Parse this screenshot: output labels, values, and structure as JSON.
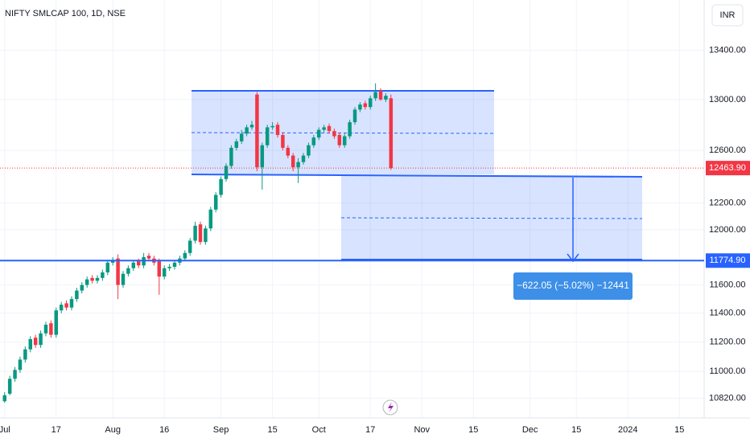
{
  "chart_data": {
    "type": "candlestick",
    "title": "NIFTY SMLCAP 100, 1D, NSE",
    "currency": "INR",
    "log_scale": true,
    "grid": true,
    "up_color": "#089981",
    "down_color": "#f23645",
    "ylim": [
      10690,
      13820
    ],
    "yticks": [
      {
        "value": 10820,
        "label": "10820.00"
      },
      {
        "value": 11000,
        "label": "11000.00"
      },
      {
        "value": 11200,
        "label": "11200.00"
      },
      {
        "value": 11400,
        "label": "11400.00"
      },
      {
        "value": 11600,
        "label": "11600.00"
      },
      {
        "value": 12000,
        "label": "12000.00"
      },
      {
        "value": 12200,
        "label": "12200.00"
      },
      {
        "value": 12600,
        "label": "12600.00"
      },
      {
        "value": 13000,
        "label": "13000.00"
      },
      {
        "value": 13400,
        "label": "13400.00"
      }
    ],
    "xlim": [
      -0.9,
      135.8
    ],
    "xticks": [
      {
        "value": 0,
        "label": "Jul"
      },
      {
        "value": 10,
        "label": "17"
      },
      {
        "value": 21,
        "label": "Aug"
      },
      {
        "value": 31,
        "label": "16"
      },
      {
        "value": 42,
        "label": "Sep"
      },
      {
        "value": 52,
        "label": "15"
      },
      {
        "value": 61,
        "label": "Oct"
      },
      {
        "value": 71,
        "label": "17"
      },
      {
        "value": 81,
        "label": "Nov"
      },
      {
        "value": 91,
        "label": "15"
      },
      {
        "value": 102,
        "label": "Dec"
      },
      {
        "value": 111,
        "label": "15"
      },
      {
        "value": 121,
        "label": "2024"
      },
      {
        "value": 131,
        "label": "15"
      }
    ],
    "open": [
      10800,
      10850,
      10950,
      11010,
      11080,
      11150,
      11230,
      11180,
      11260,
      11330,
      11250,
      11420,
      11470,
      11440,
      11500,
      11560,
      11600,
      11650,
      11630,
      11650,
      11690,
      11760,
      11790,
      11600,
      11680,
      11720,
      11770,
      11740,
      11810,
      11790,
      11770,
      11660,
      11720,
      11730,
      11760,
      11790,
      11830,
      11920,
      12040,
      11910,
      12010,
      12150,
      12260,
      12380,
      12480,
      12620,
      12670,
      12730,
      12780,
      13040,
      12470,
      12640,
      12780,
      12800,
      12720,
      12620,
      12560,
      12470,
      12510,
      12560,
      12640,
      12700,
      12760,
      12790,
      12750,
      12720,
      12640,
      12710,
      12820,
      12920,
      12970,
      12940,
      13010,
      13070,
      13000,
      13010
    ],
    "high": [
      10860,
      10970,
      11030,
      11100,
      11170,
      11240,
      11250,
      11280,
      11340,
      11350,
      11440,
      11480,
      11490,
      11520,
      11580,
      11620,
      11660,
      11670,
      11670,
      11710,
      11780,
      11800,
      11820,
      11700,
      11740,
      11780,
      11790,
      11830,
      11830,
      11810,
      11790,
      11740,
      11750,
      11780,
      11810,
      11850,
      11940,
      12060,
      12060,
      12030,
      12170,
      12280,
      12400,
      12500,
      12640,
      12690,
      12760,
      12800,
      12830,
      13060,
      12660,
      12800,
      12820,
      12820,
      12740,
      12640,
      12580,
      12540,
      12580,
      12660,
      12720,
      12780,
      12800,
      12810,
      12770,
      12740,
      12730,
      12840,
      12940,
      12980,
      12990,
      13030,
      13130,
      13090,
      13050,
      13040
    ],
    "low": [
      10790,
      10840,
      10930,
      10990,
      11060,
      11130,
      11160,
      11160,
      11240,
      11230,
      11230,
      11400,
      11420,
      11420,
      11480,
      11540,
      11580,
      11610,
      11610,
      11630,
      11670,
      11740,
      11500,
      11580,
      11660,
      11700,
      11720,
      11720,
      11770,
      11740,
      11530,
      11640,
      11700,
      11710,
      11740,
      11770,
      11810,
      11900,
      11890,
      11890,
      11990,
      12130,
      12240,
      12360,
      12460,
      12600,
      12650,
      12710,
      12760,
      12440,
      12300,
      12620,
      12760,
      12700,
      12600,
      12540,
      12440,
      12350,
      12490,
      12540,
      12620,
      12680,
      12740,
      12730,
      12690,
      12620,
      12620,
      12690,
      12800,
      12900,
      12920,
      12920,
      12990,
      12990,
      12980,
      12450
    ],
    "close": [
      10840,
      10950,
      11010,
      11080,
      11150,
      11220,
      11180,
      11260,
      11320,
      11250,
      11420,
      11460,
      11440,
      11500,
      11560,
      11600,
      11640,
      11630,
      11650,
      11690,
      11760,
      11780,
      11600,
      11680,
      11720,
      11760,
      11740,
      11800,
      11790,
      11760,
      11660,
      11720,
      11730,
      11760,
      11790,
      11830,
      11920,
      12030,
      11910,
      12010,
      12150,
      12260,
      12380,
      12480,
      12620,
      12670,
      12730,
      12780,
      12800,
      12470,
      12640,
      12780,
      12790,
      12720,
      12620,
      12560,
      12470,
      12510,
      12560,
      12640,
      12700,
      12760,
      12780,
      12750,
      12710,
      12640,
      12710,
      12820,
      12920,
      12960,
      12940,
      13010,
      13060,
      13000,
      13030,
      12463.9
    ],
    "last_price": {
      "value": 12463.9,
      "label": "12463.90"
    },
    "horizontal_line": {
      "value": 11774.9,
      "label": "11774.90"
    },
    "measure_label": "−622.05 (−5.02%) −12441"
  }
}
